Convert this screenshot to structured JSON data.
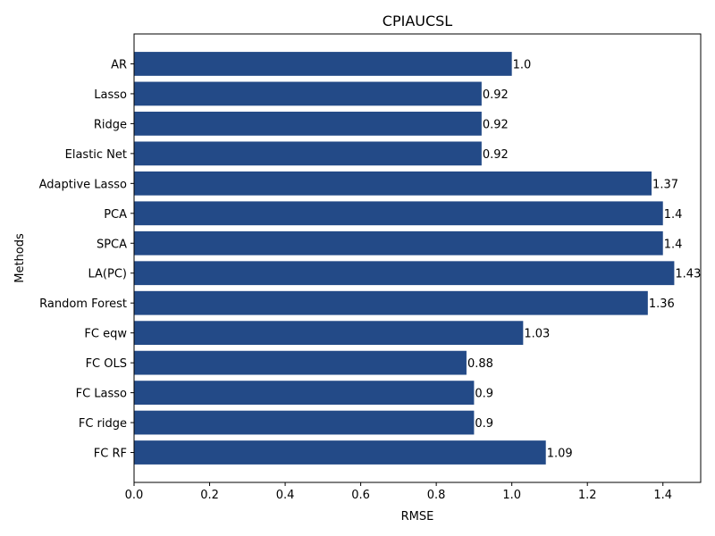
{
  "chart_data": {
    "type": "bar",
    "orientation": "horizontal",
    "title": "CPIAUCSL",
    "xlabel": "RMSE",
    "ylabel": "Methods",
    "categories": [
      "AR",
      "Lasso",
      "Ridge",
      "Elastic Net",
      "Adaptive Lasso",
      "PCA",
      "SPCA",
      "LA(PC)",
      "Random Forest",
      "FC eqw",
      "FC OLS",
      "FC Lasso",
      "FC ridge",
      "FC RF"
    ],
    "values": [
      1.0,
      0.92,
      0.92,
      0.92,
      1.37,
      1.4,
      1.4,
      1.43,
      1.36,
      1.03,
      0.88,
      0.9,
      0.9,
      1.09
    ],
    "data_labels": [
      "1.0",
      "0.92",
      "0.92",
      "0.92",
      "1.37",
      "1.4",
      "1.4",
      "1.43",
      "1.36",
      "1.03",
      "0.88",
      "0.9",
      "0.9",
      "1.09"
    ],
    "xlim": [
      0,
      1.5
    ],
    "xticks": [
      0.0,
      0.2,
      0.4,
      0.6,
      0.8,
      1.0,
      1.2,
      1.4
    ],
    "xtick_labels": [
      "0.0",
      "0.2",
      "0.4",
      "0.6",
      "0.8",
      "1.0",
      "1.2",
      "1.4"
    ],
    "bar_color": "#234a87",
    "grid": false,
    "legend": "none"
  }
}
